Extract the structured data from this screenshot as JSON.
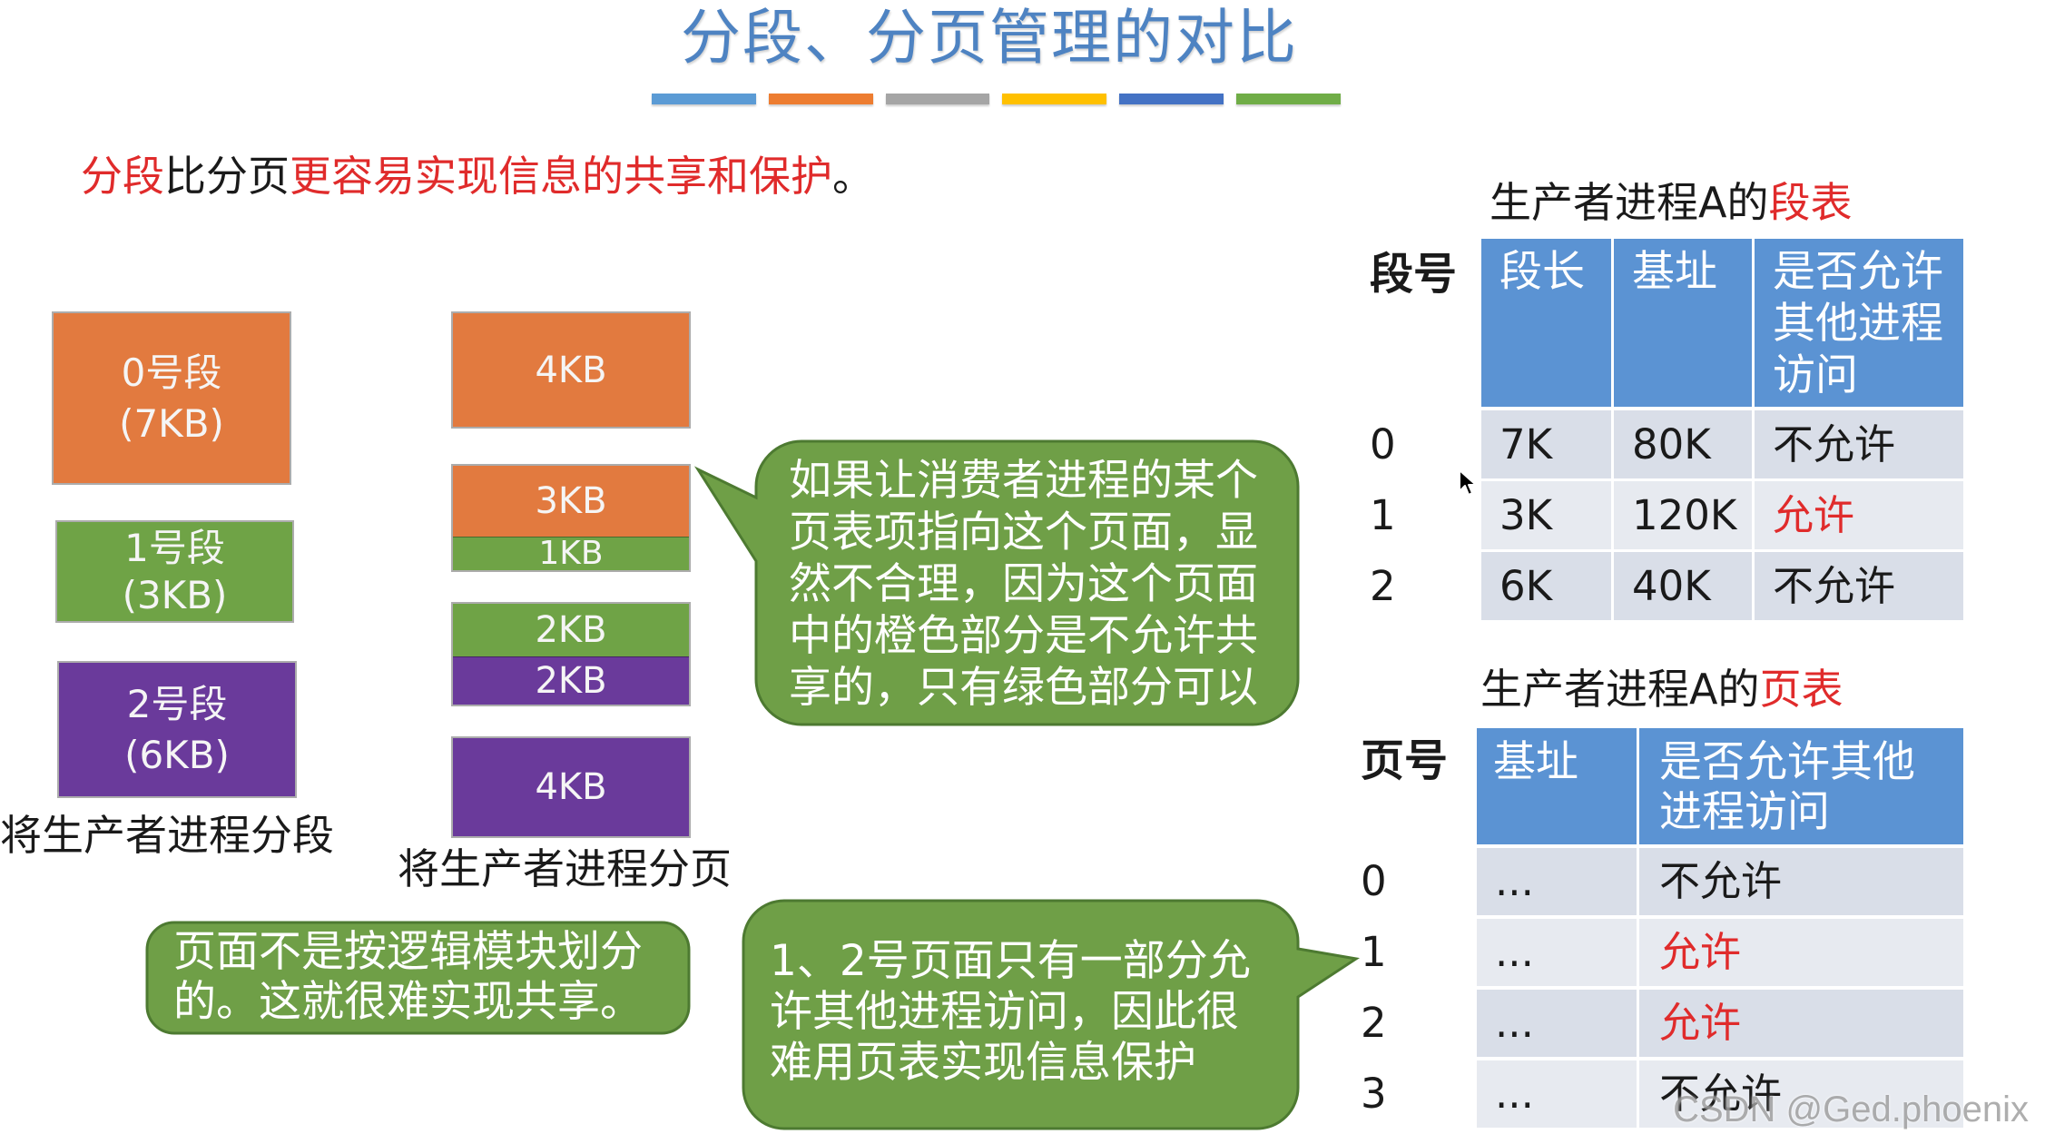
{
  "title": "分段、分页管理的对比",
  "title_bar": {
    "colors": [
      "#5b9bd5",
      "#ed7d31",
      "#a5a5a5",
      "#ffc000",
      "#4472c4",
      "#70ad47"
    ]
  },
  "colors": {
    "title": "#4e83c2",
    "highlight_red": "#e02b2b",
    "table_header": "#5b93d3",
    "table_row_dark": "#d9dee8",
    "table_row_light": "#e7eaf0",
    "callout_fill": "#6f9f47"
  },
  "intro": {
    "parts": [
      {
        "text": "分段",
        "color": "#e02b2b"
      },
      {
        "text": "比分页",
        "color": "#1a1a1a"
      },
      {
        "text": "更容易实现信息的共享和保护",
        "color": "#e02b2b"
      },
      {
        "text": "。",
        "color": "#1a1a1a"
      }
    ]
  },
  "segments_diagram": {
    "blocks": [
      {
        "name": "0号段",
        "size": "(7KB)",
        "color": "#e27a3f"
      },
      {
        "name": "1号段",
        "size": "(3KB)",
        "color": "#6fa346"
      },
      {
        "name": "2号段",
        "size": "(6KB)",
        "color": "#6a3a9b"
      }
    ],
    "label": "将生产者进程分段"
  },
  "pages_diagram": {
    "pages": [
      [
        {
          "size": "4KB",
          "color": "#e27a3f"
        }
      ],
      [
        {
          "size": "3KB",
          "color": "#e27a3f"
        },
        {
          "size": "1KB",
          "color": "#6fa346"
        }
      ],
      [
        {
          "size": "2KB",
          "color": "#6fa346"
        },
        {
          "size": "2KB",
          "color": "#6a3a9b"
        }
      ],
      [
        {
          "size": "4KB",
          "color": "#6a3a9b"
        }
      ]
    ],
    "label": "将生产者进程分页"
  },
  "callouts": {
    "shared_page_issue": [
      "如果让消费者进程的某个",
      "页表项指向这个页面，显",
      "然不合理，因为这个页面",
      "中的橙色部分是不允许共",
      "享的，只有绿色部分可以"
    ],
    "page_not_logical": [
      "页面不是按逻辑模块划分",
      "的。这就很难实现共享。"
    ],
    "page_protection": [
      "1、2号页面只有一部分允",
      "许其他进程访问，因此很",
      "难用页表实现信息保护"
    ]
  },
  "segment_table": {
    "title": {
      "prefix": "生产者进程A的",
      "highlight": "段表"
    },
    "row_header": "段号",
    "columns": {
      "length": "段长",
      "base": "基址",
      "access": [
        "是否允许",
        "其他进程",
        "访问"
      ]
    },
    "rows": [
      {
        "no": "0",
        "length": "7K",
        "base": "80K",
        "access": "不允许",
        "access_color": "#1a1a1a"
      },
      {
        "no": "1",
        "length": "3K",
        "base": "120K",
        "access": "允许",
        "access_color": "#e02b2b"
      },
      {
        "no": "2",
        "length": "6K",
        "base": "40K",
        "access": "不允许",
        "access_color": "#1a1a1a"
      }
    ]
  },
  "page_table": {
    "title": {
      "prefix": "生产者进程A的",
      "highlight": "页表"
    },
    "row_header": "页号",
    "columns": {
      "base": "基址",
      "access": [
        "是否允许其他",
        "进程访问"
      ]
    },
    "rows": [
      {
        "no": "0",
        "base": "...",
        "access": "不允许",
        "access_color": "#1a1a1a"
      },
      {
        "no": "1",
        "base": "...",
        "access": "允许",
        "access_color": "#e02b2b"
      },
      {
        "no": "2",
        "base": "...",
        "access": "允许",
        "access_color": "#e02b2b"
      },
      {
        "no": "3",
        "base": "...",
        "access": "不允许",
        "access_color": "#1a1a1a"
      }
    ]
  },
  "icons": {
    "cursor": "mouse-pointer-icon"
  },
  "watermark": "CSDN @Ged.phoenix"
}
